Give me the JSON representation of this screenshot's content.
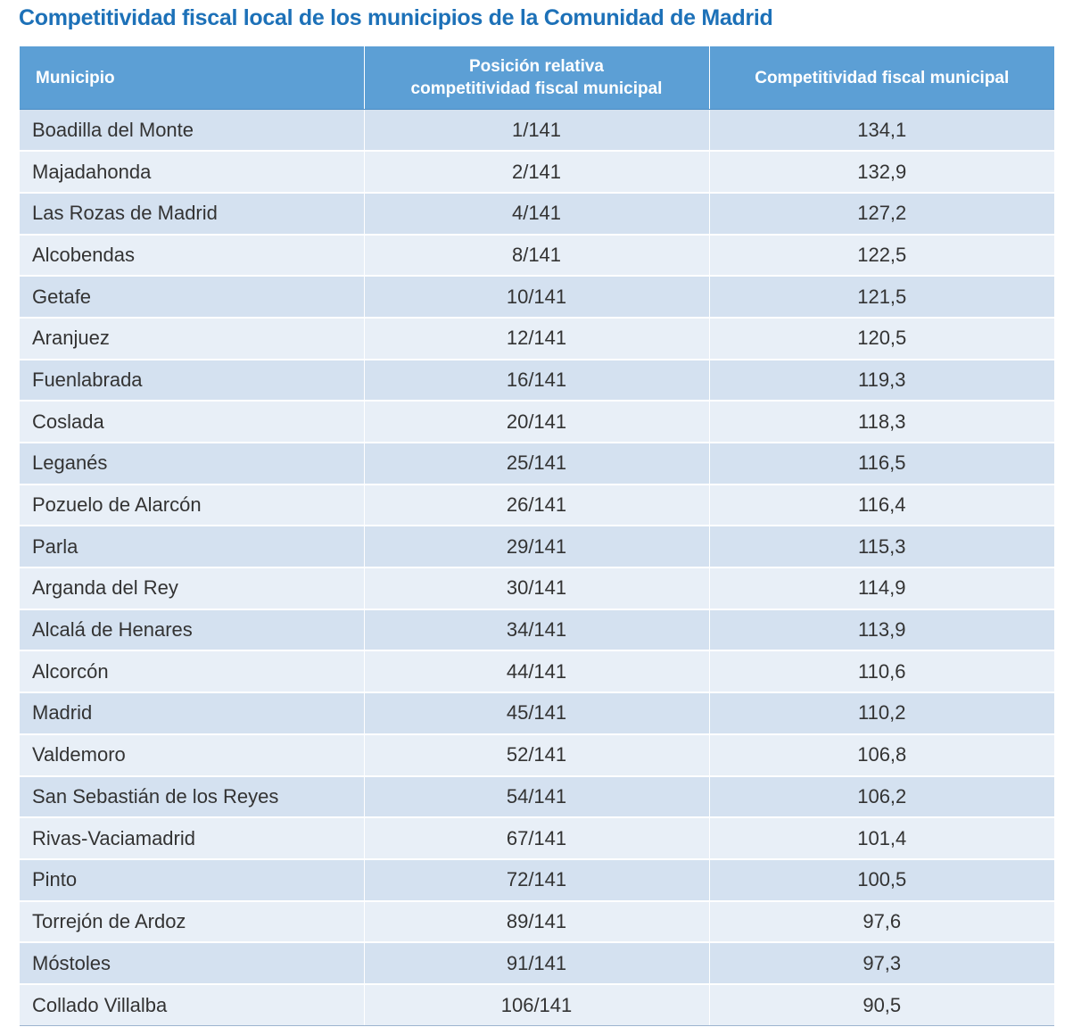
{
  "title": "Competitividad fiscal local de los municipios de la Comunidad de Madrid",
  "table": {
    "headers": {
      "municipio": "Municipio",
      "posicion_line1": "Posición relativa",
      "posicion_line2": "competitividad fiscal municipal",
      "competitividad": "Competitividad fiscal municipal"
    },
    "rows": [
      {
        "municipio": "Boadilla del Monte",
        "posicion": "1/141",
        "competitividad": "134,1"
      },
      {
        "municipio": "Majadahonda",
        "posicion": "2/141",
        "competitividad": "132,9"
      },
      {
        "municipio": "Las Rozas de Madrid",
        "posicion": "4/141",
        "competitividad": "127,2"
      },
      {
        "municipio": "Alcobendas",
        "posicion": "8/141",
        "competitividad": "122,5"
      },
      {
        "municipio": "Getafe",
        "posicion": "10/141",
        "competitividad": "121,5"
      },
      {
        "municipio": "Aranjuez",
        "posicion": "12/141",
        "competitividad": "120,5"
      },
      {
        "municipio": "Fuenlabrada",
        "posicion": "16/141",
        "competitividad": "119,3"
      },
      {
        "municipio": "Coslada",
        "posicion": "20/141",
        "competitividad": "118,3"
      },
      {
        "municipio": "Leganés",
        "posicion": "25/141",
        "competitividad": "116,5"
      },
      {
        "municipio": "Pozuelo de Alarcón",
        "posicion": "26/141",
        "competitividad": "116,4"
      },
      {
        "municipio": "Parla",
        "posicion": "29/141",
        "competitividad": "115,3"
      },
      {
        "municipio": "Arganda del Rey",
        "posicion": "30/141",
        "competitividad": "114,9"
      },
      {
        "municipio": "Alcalá de Henares",
        "posicion": "34/141",
        "competitividad": "113,9"
      },
      {
        "municipio": "Alcorcón",
        "posicion": "44/141",
        "competitividad": "110,6"
      },
      {
        "municipio": "Madrid",
        "posicion": "45/141",
        "competitividad": "110,2"
      },
      {
        "municipio": "Valdemoro",
        "posicion": "52/141",
        "competitividad": "106,8"
      },
      {
        "municipio": "San Sebastián de los Reyes",
        "posicion": "54/141",
        "competitividad": "106,2"
      },
      {
        "municipio": "Rivas-Vaciamadrid",
        "posicion": "67/141",
        "competitividad": "101,4"
      },
      {
        "municipio": "Pinto",
        "posicion": "72/141",
        "competitividad": "100,5"
      },
      {
        "municipio": "Torrejón de Ardoz",
        "posicion": "89/141",
        "competitividad": "97,6"
      },
      {
        "municipio": "Móstoles",
        "posicion": "91/141",
        "competitividad": "97,3"
      },
      {
        "municipio": "Collado Villalba",
        "posicion": "106/141",
        "competitividad": "90,5"
      }
    ]
  }
}
